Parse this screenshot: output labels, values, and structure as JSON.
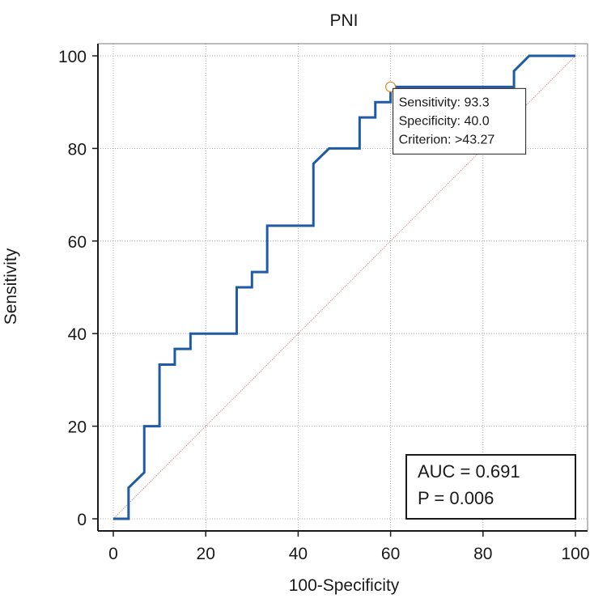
{
  "chart_data": {
    "type": "line",
    "title": "PNI",
    "xlabel": "100-Specificity",
    "ylabel": "Sensitivity",
    "xlim": [
      0,
      100
    ],
    "ylim": [
      0,
      100
    ],
    "xticks": [
      0,
      20,
      40,
      60,
      80,
      100
    ],
    "yticks": [
      0,
      20,
      40,
      60,
      80,
      100
    ],
    "grid": true,
    "series": [
      {
        "name": "ROC curve",
        "color": "#1f5aa6",
        "x": [
          0,
          3.3,
          3.3,
          6.7,
          6.7,
          10,
          10,
          13.3,
          13.3,
          16.7,
          16.7,
          26.7,
          26.7,
          30,
          30,
          33.3,
          33.3,
          43.3,
          43.3,
          46.7,
          53.3,
          53.3,
          56.7,
          56.7,
          60,
          60,
          86.7,
          86.7,
          90,
          100
        ],
        "y": [
          0,
          0,
          6.7,
          10,
          20,
          20,
          33.3,
          33.3,
          36.7,
          36.7,
          40,
          40,
          50,
          50,
          53.3,
          53.3,
          63.3,
          63.3,
          76.7,
          80,
          80,
          86.7,
          86.7,
          90,
          90,
          93.3,
          93.3,
          96.7,
          100,
          100
        ]
      },
      {
        "name": "Reference line",
        "color": "#c07a6a",
        "x": [
          0,
          100
        ],
        "y": [
          0,
          100
        ]
      }
    ],
    "highlight_point": {
      "x": 60,
      "y": 93.3,
      "color": "#d98c2a"
    },
    "tooltip": {
      "lines": [
        "Sensitivity: 93.3",
        "Specificity: 40.0",
        "Criterion: >43.27"
      ]
    },
    "annotation": {
      "lines": [
        "AUC = 0.691",
        "P = 0.006"
      ]
    }
  }
}
